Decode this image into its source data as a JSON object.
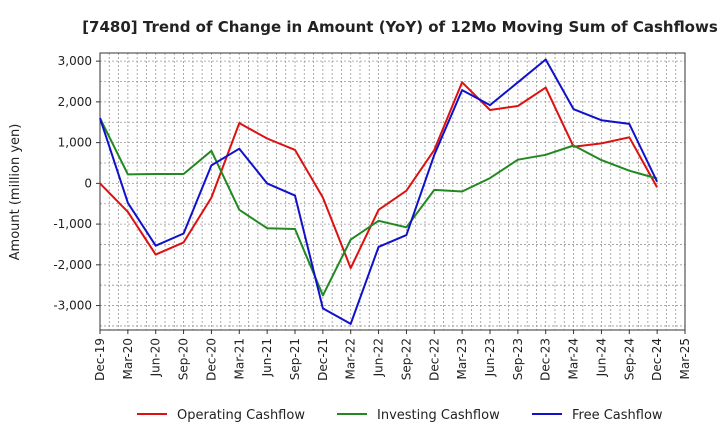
{
  "chart_data": {
    "type": "line",
    "title": "[7480]  Trend of Change in Amount (YoY) of 12Mo Moving Sum of Cashflows",
    "xlabel": "",
    "ylabel": "Amount (million yen)",
    "ylim": [
      -3600,
      3200
    ],
    "yticks": [
      -3000,
      -2000,
      -1000,
      0,
      1000,
      2000,
      3000
    ],
    "ytick_labels": [
      "-3,000",
      "-2,000",
      "-1,000",
      "0",
      "1,000",
      "2,000",
      "3,000"
    ],
    "categories": [
      "Dec-19",
      "Mar-20",
      "Jun-20",
      "Sep-20",
      "Dec-20",
      "Mar-21",
      "Jun-21",
      "Sep-21",
      "Dec-21",
      "Mar-22",
      "Jun-22",
      "Sep-22",
      "Dec-22",
      "Mar-23",
      "Jun-23",
      "Sep-23",
      "Dec-23",
      "Mar-24",
      "Jun-24",
      "Sep-24",
      "Dec-24",
      "Mar-25"
    ],
    "grid": true,
    "legend_position": "bottom",
    "series": [
      {
        "name": "Operating Cashflow",
        "color": "#dd1111",
        "values": [
          0,
          -700,
          -1750,
          -1450,
          -350,
          1480,
          1100,
          820,
          -350,
          -2080,
          -650,
          -180,
          820,
          2480,
          1800,
          1900,
          2350,
          900,
          980,
          1130,
          -100,
          null
        ]
      },
      {
        "name": "Investing Cashflow",
        "color": "#228822",
        "values": [
          1600,
          220,
          230,
          230,
          800,
          -650,
          -1100,
          -1120,
          -2750,
          -1380,
          -920,
          -1080,
          -160,
          -200,
          130,
          580,
          700,
          930,
          570,
          310,
          120,
          null
        ]
      },
      {
        "name": "Free Cashflow",
        "color": "#1111cc",
        "values": [
          1600,
          -480,
          -1530,
          -1230,
          440,
          850,
          0,
          -300,
          -3070,
          -3450,
          -1560,
          -1270,
          700,
          2290,
          1920,
          2480,
          3040,
          1820,
          1550,
          1460,
          40,
          null
        ]
      }
    ]
  }
}
